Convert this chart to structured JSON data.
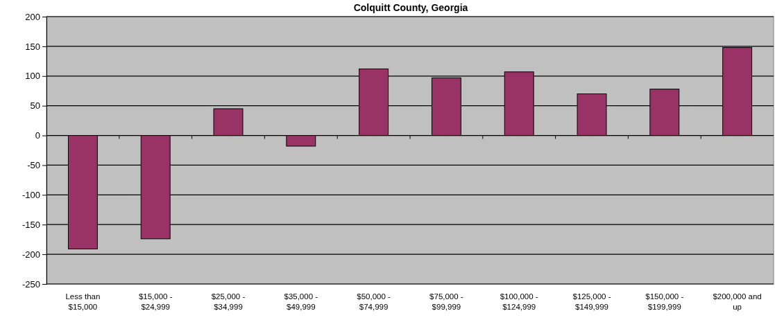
{
  "chart_data": {
    "type": "bar",
    "title": "Colquitt County, Georgia",
    "categories": [
      "Less than $15,000",
      "$15,000 - $24,999",
      "$25,000 - $34,999",
      "$35,000 - $49,999",
      "$50,000 - $74,999",
      "$75,000 - $99,999",
      "$100,000 - $124,999",
      "$125,000 - $149,999",
      "$150,000 - $199,999",
      "$200,000 and up"
    ],
    "values": [
      -191,
      -174,
      45,
      -18,
      112,
      97,
      107,
      70,
      78,
      148
    ],
    "color": "#993366",
    "ylim": [
      -250,
      200
    ],
    "yticks": [
      -250,
      -200,
      -150,
      -100,
      -50,
      0,
      50,
      100,
      150,
      200
    ],
    "grid": "y"
  }
}
